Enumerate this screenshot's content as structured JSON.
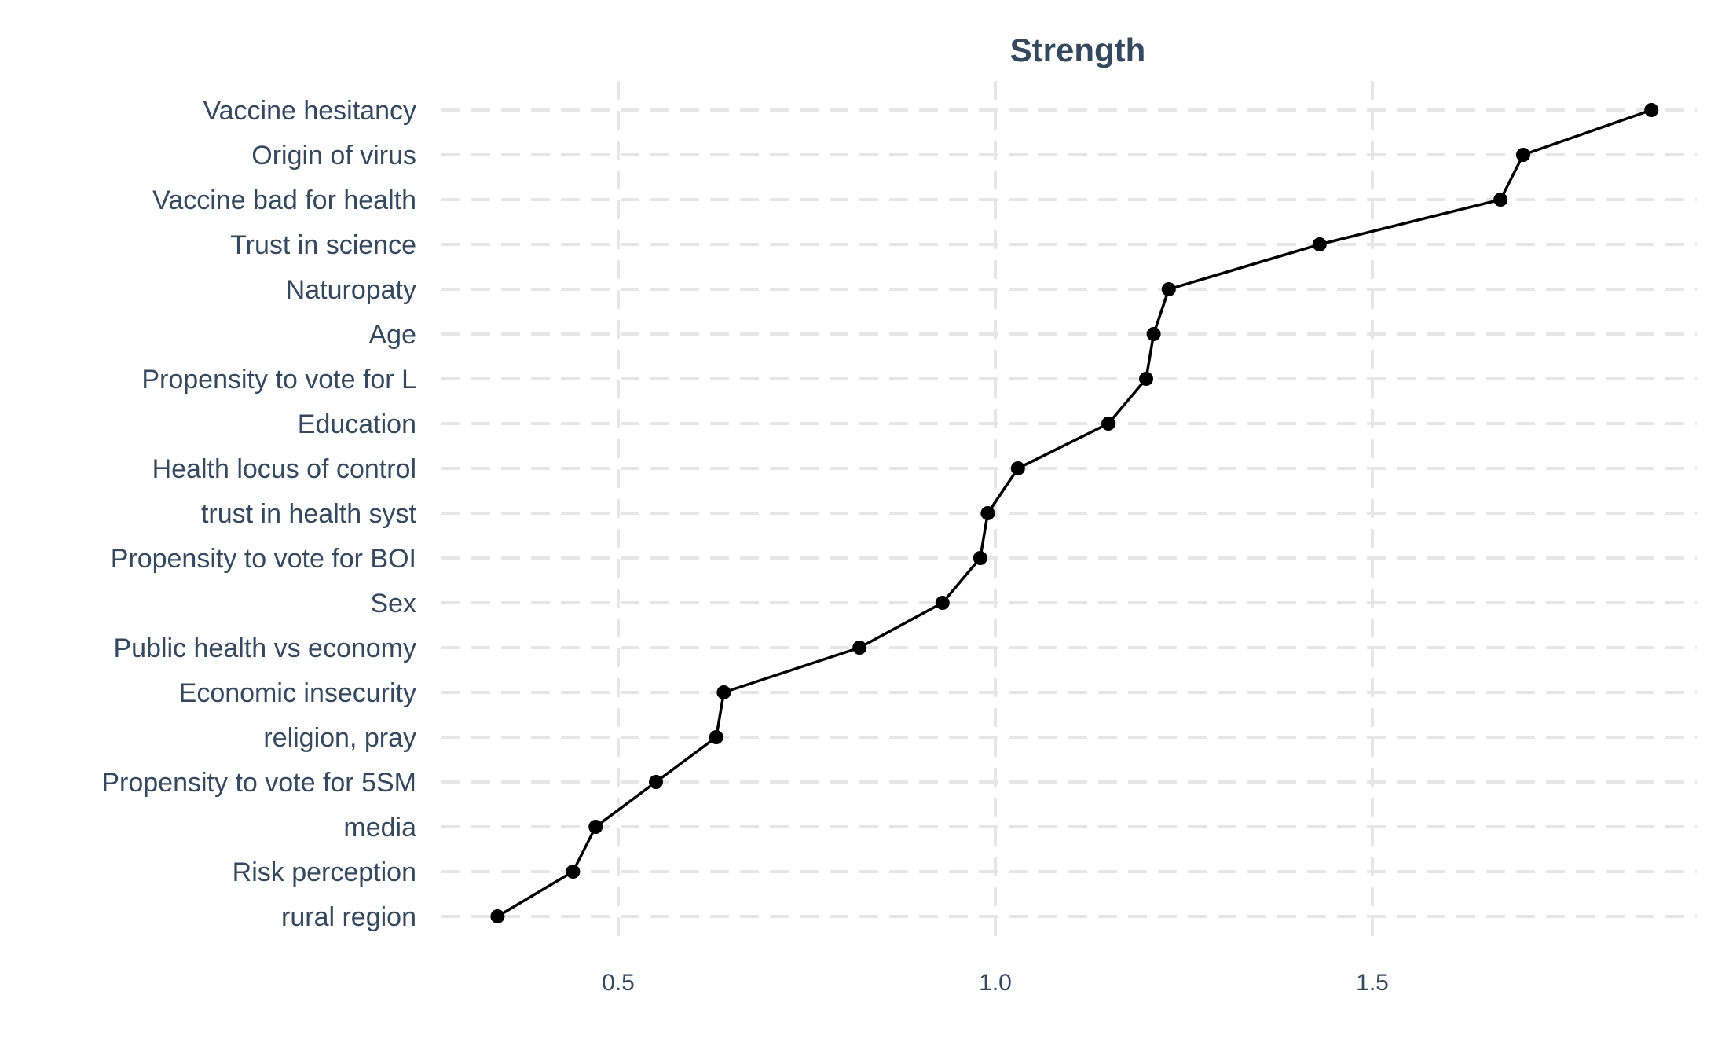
{
  "chart_data": {
    "type": "line",
    "orientation": "horizontal",
    "title": "Strength",
    "xlabel": "",
    "ylabel": "",
    "grid": true,
    "xlim": [
      0.27,
      1.88
    ],
    "x_ticks": [
      0.5,
      1.0,
      1.5
    ],
    "x_tick_labels": [
      "0.5",
      "1.0",
      "1.5"
    ],
    "categories": [
      "Vaccine hesitancy",
      "Origin of virus",
      "Vaccine bad for health",
      "Trust in science",
      "Naturopaty",
      "Age",
      "Propensity to vote for L",
      "Education",
      "Health locus of control",
      "trust in health syst",
      "Propensity to vote for BOI",
      "Sex",
      "Public health vs economy",
      "Economic insecurity",
      "religion, pray",
      "Propensity to vote for 5SM",
      "media",
      "Risk perception",
      "rural region"
    ],
    "series": [
      {
        "values": [
          1.87,
          1.7,
          1.67,
          1.43,
          1.23,
          1.21,
          1.2,
          1.15,
          1.03,
          0.99,
          0.98,
          0.93,
          0.82,
          0.64,
          0.63,
          0.55,
          0.47,
          0.44,
          0.34
        ]
      }
    ],
    "colors": {
      "line": "#000000",
      "points": "#000000",
      "grid": "#e6e6e6",
      "text": "#34495e"
    }
  }
}
